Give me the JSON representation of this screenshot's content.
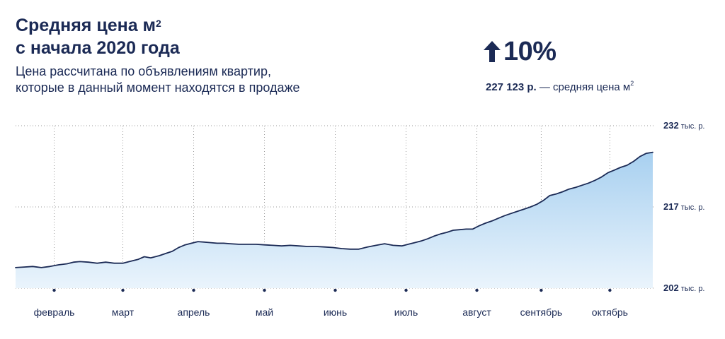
{
  "header": {
    "title_line1": "Средняя цена м",
    "title_sup": "2",
    "title_line2": "с начала 2020 года",
    "subtitle_line1": "Цена рассчитана по объявлениям квартир,",
    "subtitle_line2": "которые в данный момент находятся в продаже"
  },
  "summary": {
    "change": "10%",
    "direction": "up",
    "avg_value": "227 123 р.",
    "avg_label": "— средняя цена м",
    "avg_sup": "2",
    "arrow_icon": "arrow-up-icon"
  },
  "colors": {
    "text": "#1b2a55",
    "line": "#1b2a55",
    "area_top": "#a8d0f0",
    "area_bottom": "#eaf4fc",
    "grid": "#9a9a9a"
  },
  "chart_data": {
    "type": "area",
    "title": "Средняя цена м²",
    "ylabel": "",
    "xlabel": "",
    "y_unit": "тыс. р.",
    "ylim": [
      202,
      232
    ],
    "y_ticks": [
      202,
      217,
      232
    ],
    "grid": "horizontal dotted",
    "x_range": [
      0,
      297
    ],
    "x_ticks": [
      {
        "day": 18,
        "label": "февраль"
      },
      {
        "day": 50,
        "label": "март"
      },
      {
        "day": 83,
        "label": "апрель"
      },
      {
        "day": 116,
        "label": "май"
      },
      {
        "day": 149,
        "label": "июнь"
      },
      {
        "day": 182,
        "label": "июль"
      },
      {
        "day": 215,
        "label": "август"
      },
      {
        "day": 245,
        "label": "сентябрь"
      },
      {
        "day": 277,
        "label": "октябрь"
      }
    ],
    "series": [
      {
        "values": [
          [
            0,
            205.8
          ],
          [
            4,
            205.9
          ],
          [
            8,
            206.0
          ],
          [
            12,
            205.8
          ],
          [
            16,
            206.0
          ],
          [
            20,
            206.3
          ],
          [
            24,
            206.5
          ],
          [
            27,
            206.8
          ],
          [
            30,
            206.9
          ],
          [
            34,
            206.8
          ],
          [
            38,
            206.6
          ],
          [
            42,
            206.8
          ],
          [
            46,
            206.6
          ],
          [
            50,
            206.6
          ],
          [
            53,
            206.9
          ],
          [
            57,
            207.3
          ],
          [
            60,
            207.8
          ],
          [
            63,
            207.6
          ],
          [
            67,
            208.0
          ],
          [
            70,
            208.4
          ],
          [
            73,
            208.8
          ],
          [
            76,
            209.5
          ],
          [
            79,
            210.0
          ],
          [
            82,
            210.3
          ],
          [
            85,
            210.6
          ],
          [
            88,
            210.5
          ],
          [
            91,
            210.4
          ],
          [
            94,
            210.3
          ],
          [
            97,
            210.3
          ],
          [
            100,
            210.2
          ],
          [
            104,
            210.1
          ],
          [
            108,
            210.1
          ],
          [
            112,
            210.1
          ],
          [
            116,
            210.0
          ],
          [
            120,
            209.9
          ],
          [
            124,
            209.8
          ],
          [
            128,
            209.9
          ],
          [
            132,
            209.8
          ],
          [
            136,
            209.7
          ],
          [
            140,
            209.7
          ],
          [
            144,
            209.6
          ],
          [
            148,
            209.5
          ],
          [
            152,
            209.3
          ],
          [
            156,
            209.2
          ],
          [
            160,
            209.2
          ],
          [
            164,
            209.6
          ],
          [
            168,
            209.9
          ],
          [
            172,
            210.2
          ],
          [
            176,
            209.9
          ],
          [
            180,
            209.8
          ],
          [
            183,
            210.1
          ],
          [
            186,
            210.4
          ],
          [
            189,
            210.7
          ],
          [
            192,
            211.1
          ],
          [
            195,
            211.6
          ],
          [
            198,
            212.0
          ],
          [
            201,
            212.3
          ],
          [
            204,
            212.7
          ],
          [
            207,
            212.8
          ],
          [
            210,
            212.9
          ],
          [
            213,
            212.9
          ],
          [
            216,
            213.5
          ],
          [
            219,
            214.0
          ],
          [
            222,
            214.4
          ],
          [
            225,
            214.9
          ],
          [
            228,
            215.4
          ],
          [
            231,
            215.8
          ],
          [
            234,
            216.2
          ],
          [
            237,
            216.6
          ],
          [
            240,
            217.0
          ],
          [
            243,
            217.5
          ],
          [
            246,
            218.2
          ],
          [
            249,
            219.1
          ],
          [
            252,
            219.4
          ],
          [
            255,
            219.8
          ],
          [
            258,
            220.3
          ],
          [
            261,
            220.6
          ],
          [
            264,
            221.0
          ],
          [
            267,
            221.4
          ],
          [
            270,
            221.9
          ],
          [
            273,
            222.5
          ],
          [
            276,
            223.3
          ],
          [
            279,
            223.8
          ],
          [
            282,
            224.3
          ],
          [
            285,
            224.7
          ],
          [
            288,
            225.4
          ],
          [
            291,
            226.3
          ],
          [
            294,
            226.9
          ],
          [
            297,
            227.1
          ]
        ]
      }
    ]
  }
}
